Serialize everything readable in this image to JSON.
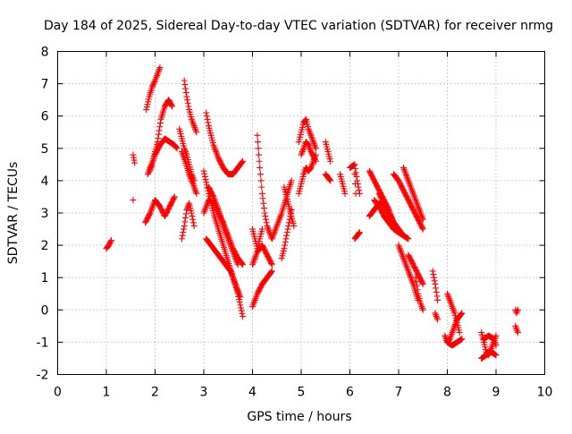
{
  "chart_data": {
    "type": "scatter",
    "title": "Day 184 of 2025, Sidereal Day-to-day VTEC variation (SDTVAR) for receiver nrmg",
    "xlabel": "GPS time / hours",
    "ylabel": "SDTVAR / TECUs",
    "xlim": [
      0,
      10
    ],
    "ylim": [
      -2,
      8
    ],
    "x_ticks": [
      "0",
      "1",
      "2",
      "3",
      "4",
      "5",
      "6",
      "7",
      "8",
      "9",
      "10"
    ],
    "y_ticks": [
      "-2",
      "-1",
      "0",
      "1",
      "2",
      "3",
      "4",
      "5",
      "6",
      "7",
      "8"
    ],
    "grid": true,
    "marker": "+",
    "color": "#ff0000",
    "series": [
      {
        "name": "SDTVAR",
        "segments": [
          {
            "x": [
              1.0,
              1.05,
              1.1
            ],
            "y": [
              1.9,
              2.0,
              2.15
            ]
          },
          {
            "x": [
              1.55,
              1.58
            ],
            "y": [
              4.8,
              4.55
            ]
          },
          {
            "x": [
              1.55
            ],
            "y": [
              3.4
            ]
          },
          {
            "x": [
              1.82,
              1.88,
              1.94,
              2.0,
              2.05,
              2.1
            ],
            "y": [
              6.2,
              6.6,
              6.9,
              7.1,
              7.3,
              7.5
            ]
          },
          {
            "x": [
              1.85,
              1.95,
              2.05,
              2.12,
              2.2,
              2.28,
              2.35
            ],
            "y": [
              4.2,
              4.6,
              5.2,
              5.9,
              6.3,
              6.5,
              6.3
            ]
          },
          {
            "x": [
              1.8,
              1.9,
              2.0,
              2.1,
              2.2,
              2.3,
              2.4
            ],
            "y": [
              2.7,
              3.0,
              3.4,
              3.2,
              2.9,
              3.2,
              3.5
            ]
          },
          {
            "x": [
              1.9,
              2.0,
              2.1,
              2.2,
              2.3,
              2.4,
              2.45
            ],
            "y": [
              4.3,
              4.8,
              5.1,
              5.3,
              5.2,
              5.1,
              5.0
            ]
          },
          {
            "x": [
              2.5,
              2.55,
              2.6,
              2.65,
              2.7,
              2.75,
              2.8
            ],
            "y": [
              5.6,
              5.3,
              5.0,
              4.8,
              4.5,
              4.2,
              4.0
            ]
          },
          {
            "x": [
              2.6,
              2.65,
              2.7,
              2.75,
              2.8,
              2.85
            ],
            "y": [
              7.1,
              6.6,
              6.2,
              5.9,
              5.7,
              5.5
            ]
          },
          {
            "x": [
              2.55,
              2.6,
              2.65,
              2.7,
              2.75,
              2.8
            ],
            "y": [
              2.2,
              2.6,
              3.1,
              3.3,
              3.0,
              2.6
            ]
          },
          {
            "x": [
              2.55,
              2.62,
              2.7,
              2.78,
              2.85
            ],
            "y": [
              4.9,
              4.6,
              4.2,
              3.9,
              3.6
            ]
          },
          {
            "x": [
              3.05,
              3.1,
              3.2,
              3.3,
              3.4,
              3.5,
              3.6,
              3.7,
              3.8
            ],
            "y": [
              6.1,
              5.7,
              5.1,
              4.7,
              4.4,
              4.2,
              4.2,
              4.4,
              4.6
            ]
          },
          {
            "x": [
              3.0,
              3.1,
              3.2,
              3.3,
              3.4,
              3.5,
              3.6,
              3.7,
              3.8
            ],
            "y": [
              4.3,
              3.6,
              3.0,
              2.5,
              2.0,
              1.5,
              1.0,
              0.5,
              -0.2
            ]
          },
          {
            "x": [
              3.0,
              3.1,
              3.2,
              3.3,
              3.4,
              3.5,
              3.6,
              3.7,
              3.8
            ],
            "y": [
              3.0,
              3.4,
              3.3,
              3.0,
              2.7,
              2.3,
              1.9,
              1.6,
              1.4
            ]
          },
          {
            "x": [
              3.05,
              3.15,
              3.25,
              3.35,
              3.45,
              3.55,
              3.65,
              3.75
            ],
            "y": [
              2.2,
              2.0,
              1.8,
              1.6,
              1.4,
              1.2,
              0.8,
              0.4
            ]
          },
          {
            "x": [
              3.1,
              3.2,
              3.3,
              3.4,
              3.5,
              3.6,
              3.7
            ],
            "y": [
              3.8,
              3.5,
              3.1,
              2.6,
              2.2,
              1.8,
              1.4
            ]
          },
          {
            "x": [
              4.0,
              4.05,
              4.1,
              4.15,
              4.2
            ],
            "y": [
              2.5,
              2.2,
              1.9,
              2.2,
              2.5
            ]
          },
          {
            "x": [
              4.1,
              4.12,
              4.15,
              4.2,
              4.25,
              4.3,
              4.4
            ],
            "y": [
              5.4,
              5.0,
              4.4,
              3.6,
              3.0,
              2.6,
              2.2
            ]
          },
          {
            "x": [
              4.0,
              4.05,
              4.1,
              4.2,
              4.3,
              4.4
            ],
            "y": [
              0.1,
              0.3,
              0.5,
              0.8,
              1.0,
              1.2
            ]
          },
          {
            "x": [
              4.0,
              4.1,
              4.2,
              4.3,
              4.4
            ],
            "y": [
              1.4,
              1.8,
              2.0,
              1.7,
              1.4
            ]
          },
          {
            "x": [
              4.4,
              4.5,
              4.6,
              4.7,
              4.8
            ],
            "y": [
              2.2,
              2.6,
              3.0,
              3.5,
              4.0
            ]
          },
          {
            "x": [
              4.6,
              4.65,
              4.7,
              4.75,
              4.8
            ],
            "y": [
              1.6,
              1.9,
              2.3,
              2.7,
              3.1
            ]
          },
          {
            "x": [
              4.65,
              4.7,
              4.75,
              4.8,
              4.85
            ],
            "y": [
              3.8,
              3.5,
              3.2,
              2.9,
              2.6
            ]
          },
          {
            "x": [
              4.95,
              5.0,
              5.05,
              5.1,
              5.15,
              5.2,
              5.25,
              5.3
            ],
            "y": [
              5.2,
              5.5,
              5.8,
              5.9,
              5.6,
              5.4,
              5.2,
              5.0
            ]
          },
          {
            "x": [
              4.95,
              5.0,
              5.05,
              5.1,
              5.15,
              5.2,
              5.25,
              5.3
            ],
            "y": [
              3.6,
              3.9,
              4.2,
              4.4,
              4.3,
              4.4,
              4.6,
              4.8
            ]
          },
          {
            "x": [
              5.0,
              5.05,
              5.1,
              5.15,
              5.2,
              5.3
            ],
            "y": [
              4.8,
              5.0,
              5.2,
              5.1,
              4.9,
              4.6
            ]
          },
          {
            "x": [
              5.5,
              5.55,
              5.6
            ],
            "y": [
              5.2,
              4.9,
              4.6
            ]
          },
          {
            "x": [
              5.5,
              5.55,
              5.6
            ],
            "y": [
              4.2,
              4.1,
              4.0
            ]
          },
          {
            "x": [
              5.8,
              5.85,
              5.9
            ],
            "y": [
              4.2,
              3.9,
              3.6
            ]
          },
          {
            "x": [
              6.1,
              6.12
            ],
            "y": [
              4.2,
              3.6
            ]
          },
          {
            "x": [
              6.1,
              6.2
            ],
            "y": [
              2.2,
              2.4
            ]
          },
          {
            "x": [
              6.0,
              6.1,
              6.15,
              6.2
            ],
            "y": [
              4.4,
              4.5,
              4.0,
              3.6
            ]
          },
          {
            "x": [
              6.4,
              6.5,
              6.6,
              6.7,
              6.8,
              6.9,
              7.0,
              7.1
            ],
            "y": [
              4.3,
              4.0,
              3.7,
              3.4,
              3.1,
              2.7,
              2.4,
              2.3
            ]
          },
          {
            "x": [
              6.4,
              6.5,
              6.6,
              6.7,
              6.8,
              6.9
            ],
            "y": [
              2.9,
              3.1,
              3.3,
              3.2,
              2.9,
              2.6
            ]
          },
          {
            "x": [
              6.5,
              6.6,
              6.7,
              6.8,
              6.9,
              7.0
            ],
            "y": [
              3.4,
              3.2,
              2.9,
              2.7,
              2.5,
              2.4
            ]
          },
          {
            "x": [
              6.6,
              6.7,
              6.8,
              6.9,
              7.0,
              7.1,
              7.2
            ],
            "y": [
              3.6,
              3.3,
              3.0,
              2.7,
              2.5,
              2.3,
              2.2
            ]
          },
          {
            "x": [
              6.9,
              7.0,
              7.1,
              7.2,
              7.3,
              7.4,
              7.5
            ],
            "y": [
              4.2,
              4.0,
              3.7,
              3.4,
              3.1,
              2.8,
              2.5
            ]
          },
          {
            "x": [
              7.1,
              7.15,
              7.2,
              7.3,
              7.4,
              7.5
            ],
            "y": [
              4.4,
              4.2,
              4.0,
              3.6,
              3.2,
              2.8
            ]
          },
          {
            "x": [
              7.0,
              7.1,
              7.2,
              7.3,
              7.4
            ],
            "y": [
              2.0,
              1.6,
              1.2,
              0.8,
              0.3
            ]
          },
          {
            "x": [
              7.2,
              7.3,
              7.4,
              7.5
            ],
            "y": [
              1.7,
              1.4,
              1.1,
              0.8
            ]
          },
          {
            "x": [
              7.35,
              7.4,
              7.45,
              7.5
            ],
            "y": [
              1.0,
              0.5,
              0.2,
              0.0
            ]
          },
          {
            "x": [
              7.7,
              7.75,
              7.8
            ],
            "y": [
              1.2,
              0.8,
              0.3
            ]
          },
          {
            "x": [
              7.75,
              7.8
            ],
            "y": [
              -0.1,
              -0.3
            ]
          },
          {
            "x": [
              8.0,
              8.05,
              8.1,
              8.15,
              8.2,
              8.25
            ],
            "y": [
              0.5,
              0.3,
              0.1,
              -0.1,
              -0.4,
              -0.7
            ]
          },
          {
            "x": [
              7.95,
              8.0,
              8.05,
              8.1,
              8.15,
              8.2,
              8.25,
              8.3
            ],
            "y": [
              -0.8,
              -1.0,
              -0.9,
              -0.7,
              -0.5,
              -0.3,
              -0.2,
              -0.1
            ]
          },
          {
            "x": [
              8.0,
              8.1,
              8.2,
              8.3
            ],
            "y": [
              -1.0,
              -1.1,
              -1.0,
              -0.9
            ]
          },
          {
            "x": [
              8.7,
              8.75,
              8.8,
              8.85,
              8.9,
              8.95,
              9.0
            ],
            "y": [
              -0.7,
              -1.0,
              -1.3,
              -1.4,
              -1.2,
              -1.0,
              -0.8
            ]
          },
          {
            "x": [
              8.7,
              8.8,
              8.9,
              9.0
            ],
            "y": [
              -1.5,
              -1.4,
              -1.3,
              -1.4
            ]
          },
          {
            "x": [
              8.75,
              8.85,
              8.95,
              9.0
            ],
            "y": [
              -0.9,
              -0.8,
              -0.9,
              -1.1
            ]
          },
          {
            "x": [
              9.4,
              9.42,
              9.45
            ],
            "y": [
              0.0,
              -0.1,
              0.0
            ]
          },
          {
            "x": [
              9.4,
              9.42,
              9.45
            ],
            "y": [
              -0.5,
              -0.6,
              -0.7
            ]
          }
        ]
      }
    ]
  }
}
